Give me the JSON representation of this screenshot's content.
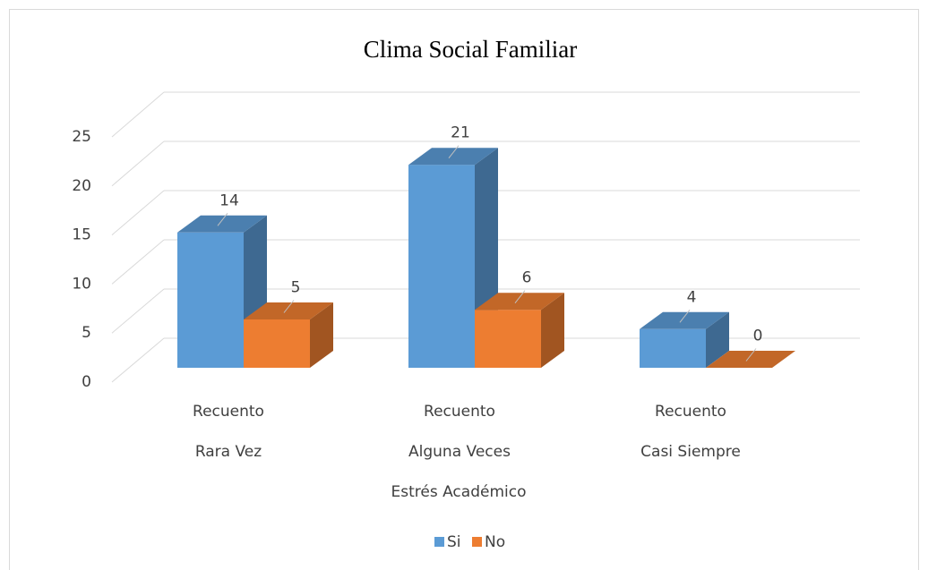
{
  "chart_data": {
    "type": "bar3d",
    "title": "Clima Social Familiar",
    "categories": [
      [
        "Recuento",
        "Rara Vez"
      ],
      [
        "Recuento",
        "Alguna Veces"
      ],
      [
        "Recuento",
        "Casi Siempre"
      ]
    ],
    "x_label": "Estrés Académico",
    "series": [
      {
        "name": "Si",
        "color": "#5b9bd5",
        "values": [
          14,
          21,
          4
        ]
      },
      {
        "name": "No",
        "color": "#ed7d31",
        "values": [
          5,
          6,
          0
        ]
      }
    ],
    "ylim": [
      0,
      25
    ],
    "yticks": [
      0,
      5,
      10,
      15,
      20,
      25
    ],
    "grid": true,
    "legend": "bottom"
  }
}
